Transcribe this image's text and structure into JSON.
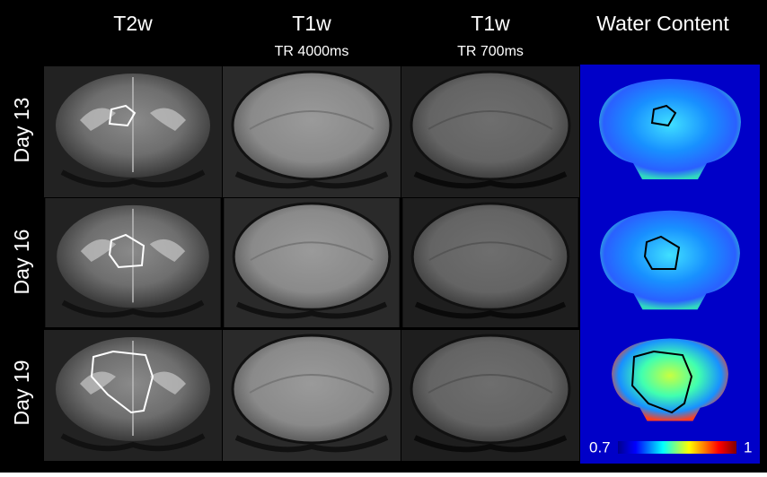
{
  "columns": [
    {
      "title": "T2w"
    },
    {
      "title": "T1w",
      "subtitle": "TR 4000ms"
    },
    {
      "title": "T1w",
      "subtitle": "TR 700ms"
    },
    {
      "title": "Water Content"
    }
  ],
  "rows": [
    {
      "label": "Day 13"
    },
    {
      "label": "Day 16"
    },
    {
      "label": "Day 19"
    }
  ],
  "colorbar": {
    "min": 0.7,
    "max": 1
  }
}
